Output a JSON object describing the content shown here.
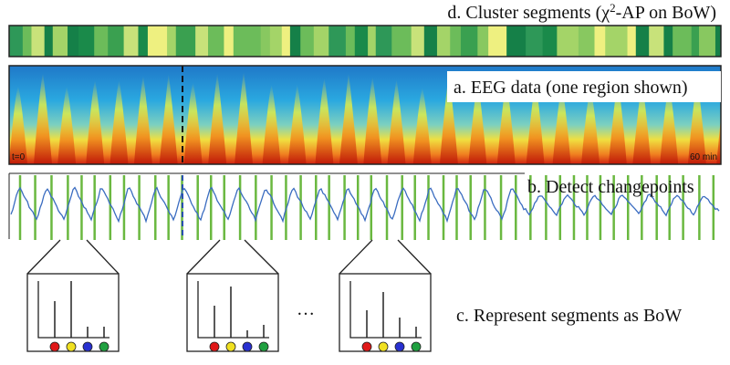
{
  "panel_d": {
    "label_start": "d. Cluster segments (χ",
    "label_sup": "2",
    "label_end": "-AP on BoW)"
  },
  "panel_a": {
    "label": "a. EEG data (one region shown)",
    "start": "t=0",
    "end": "60 min"
  },
  "panel_b": {
    "label": "b. Detect changepoints"
  },
  "panel_c": {
    "label": "c. Represent segments as BoW",
    "ellipsis": "…"
  }
}
